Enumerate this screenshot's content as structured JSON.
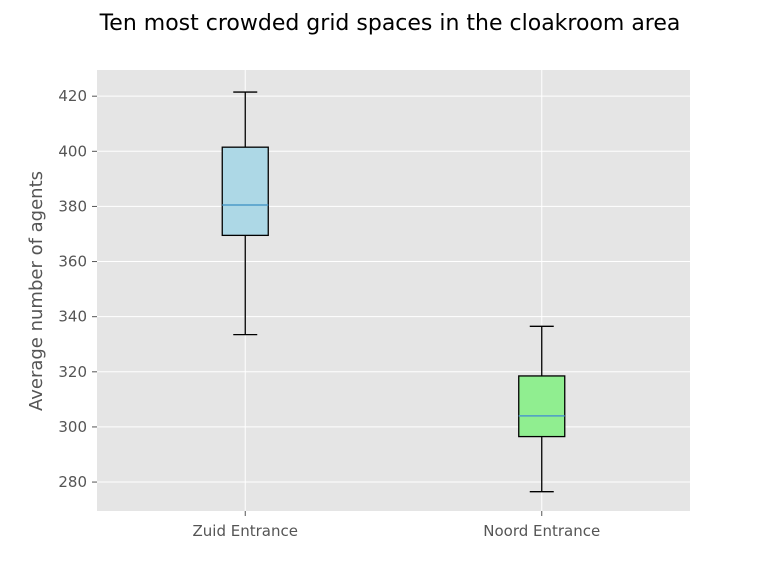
{
  "chart_data": {
    "type": "box",
    "title": "Ten most crowded grid spaces in the cloakroom area",
    "xlabel": "",
    "ylabel": "Average number of agents",
    "categories": [
      "Zuid Entrance",
      "Noord Entrance"
    ],
    "boxes": [
      {
        "category": "Zuid Entrance",
        "whisker_low": 333.5,
        "q1": 369.5,
        "median": 380.5,
        "q3": 401.5,
        "whisker_high": 421.5,
        "color": "#add8e6"
      },
      {
        "category": "Noord Entrance",
        "whisker_low": 276.5,
        "q1": 296.5,
        "median": 304.0,
        "q3": 318.5,
        "whisker_high": 336.5,
        "color": "#90ee90"
      }
    ],
    "ylim": [
      269.5,
      429.5
    ],
    "yticks": [
      "280",
      "300",
      "320",
      "340",
      "360",
      "380",
      "400",
      "420"
    ],
    "grid": true,
    "background": "#e5e5e5",
    "median_color": "#4c9ac9"
  }
}
